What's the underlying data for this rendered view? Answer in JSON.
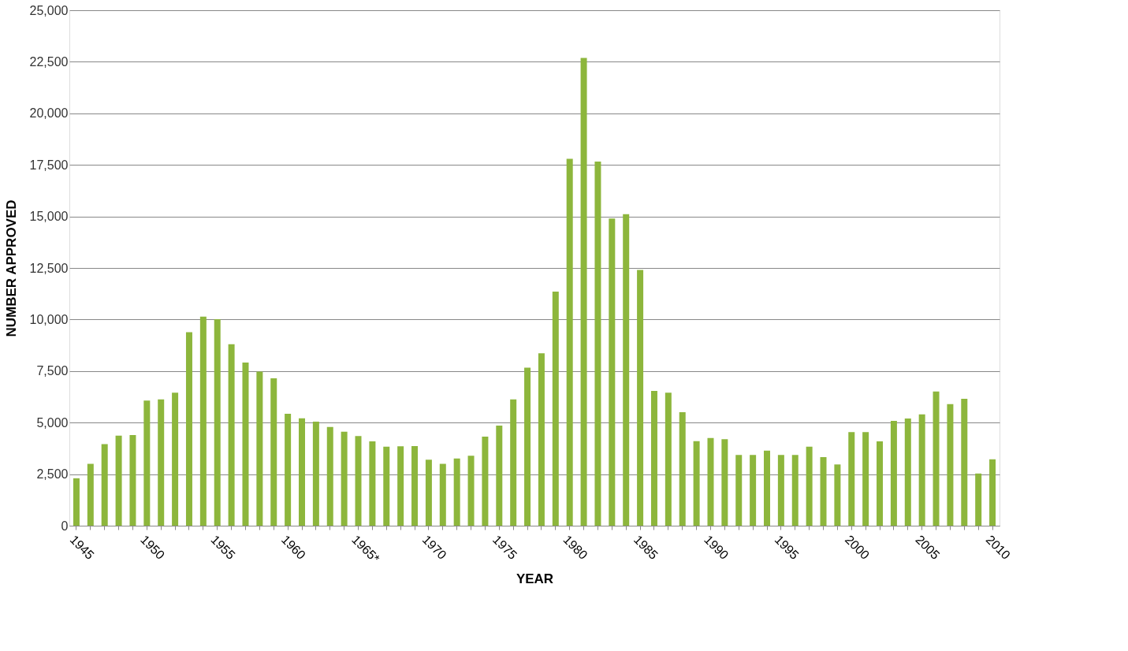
{
  "chart_data": {
    "type": "bar",
    "xlabel": "YEAR",
    "ylabel": "NUMBER APPROVED",
    "categories": [
      "1945",
      null,
      null,
      null,
      null,
      "1950",
      null,
      null,
      null,
      null,
      "1955",
      null,
      null,
      null,
      null,
      "1960",
      null,
      null,
      null,
      null,
      "1965*",
      null,
      null,
      null,
      null,
      "1970",
      null,
      null,
      null,
      null,
      "1975",
      null,
      null,
      null,
      null,
      "1980",
      null,
      null,
      null,
      null,
      "1985",
      null,
      null,
      null,
      null,
      "1990",
      null,
      null,
      null,
      null,
      "1995",
      null,
      null,
      null,
      null,
      "2000",
      null,
      null,
      null,
      null,
      "2005",
      null,
      null,
      null,
      null,
      "2010"
    ],
    "values": [
      2300,
      3000,
      3960,
      4370,
      4400,
      6070,
      6130,
      6450,
      9380,
      10140,
      10020,
      8800,
      7910,
      7470,
      7150,
      5430,
      5210,
      5050,
      4790,
      4560,
      4350,
      4090,
      3830,
      3850,
      3860,
      3200,
      3000,
      3260,
      3390,
      4320,
      4850,
      6130,
      7660,
      8360,
      11350,
      17790,
      22690,
      17660,
      14900,
      15110,
      12400,
      6540,
      6450,
      5500,
      4100,
      4250,
      4200,
      3430,
      3430,
      3640,
      3430,
      3430,
      3830,
      3330,
      2970,
      4540,
      4540,
      4090,
      5080,
      5200,
      5400,
      6510,
      5900,
      6150,
      2530,
      3220
    ],
    "color": "#8db63c",
    "ylim": [
      0,
      25000
    ],
    "yticks": [
      {
        "value": 0,
        "label": "0"
      },
      {
        "value": 2500,
        "label": "2,500"
      },
      {
        "value": 5000,
        "label": "5,000"
      },
      {
        "value": 7500,
        "label": "7,500"
      },
      {
        "value": 10000,
        "label": "10,000"
      },
      {
        "value": 12500,
        "label": "12,500"
      },
      {
        "value": 15000,
        "label": "15,000"
      },
      {
        "value": 17500,
        "label": "17,500"
      },
      {
        "value": 20000,
        "label": "20,000"
      },
      {
        "value": 22500,
        "label": "22,500"
      },
      {
        "value": 25000,
        "label": "25,000"
      }
    ],
    "grid": "y"
  }
}
